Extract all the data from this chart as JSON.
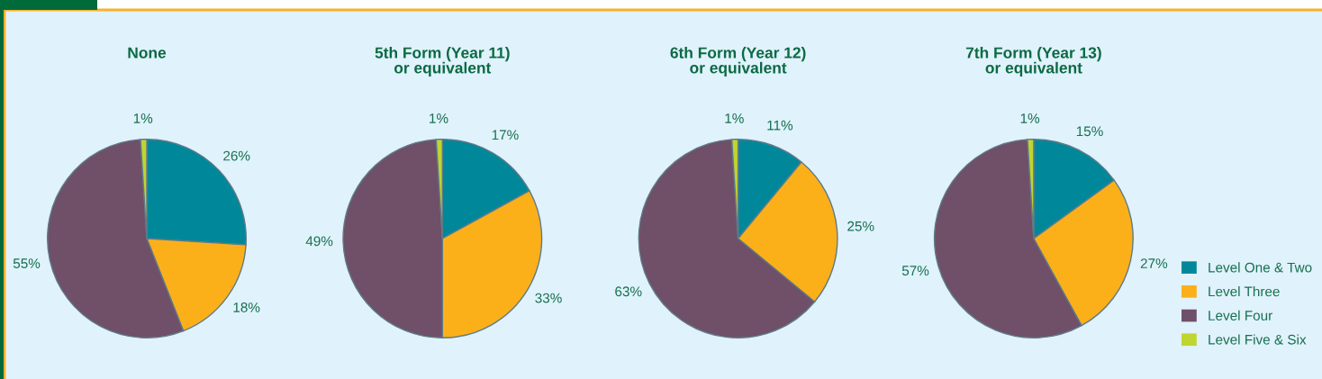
{
  "chart_data": [
    {
      "type": "pie",
      "title": "None",
      "categories": [
        "Level One & Two",
        "Level Three",
        "Level Four",
        "Level Five & Six"
      ],
      "values": [
        26,
        18,
        55,
        1
      ],
      "colors": [
        "#00889a",
        "#fbb01a",
        "#704f68",
        "#bfd530"
      ],
      "value_labels": [
        "26%",
        "18%",
        "55%",
        "1%"
      ],
      "legend": "right"
    },
    {
      "type": "pie",
      "title": "5th Form (Year 11)\nor equivalent",
      "values": [
        17,
        33,
        49,
        1
      ],
      "colors": [
        "#00889a",
        "#fbb01a",
        "#704f68",
        "#bfd530"
      ],
      "value_labels": [
        "17%",
        "33%",
        "49%",
        "1%"
      ]
    },
    {
      "type": "pie",
      "title": "6th Form (Year 12)\nor equivalent",
      "values": [
        11,
        25,
        63,
        1
      ],
      "colors": [
        "#00889a",
        "#fbb01a",
        "#704f68",
        "#bfd530"
      ],
      "value_labels": [
        "11%",
        "25%",
        "63%",
        "1%"
      ]
    },
    {
      "type": "pie",
      "title": "7th Form (Year 13)\nor equivalent",
      "values": [
        15,
        27,
        57,
        1
      ],
      "colors": [
        "#00889a",
        "#fbb01a",
        "#704f68",
        "#bfd530"
      ],
      "value_labels": [
        "15%",
        "27%",
        "57%",
        "1%"
      ]
    }
  ]
}
